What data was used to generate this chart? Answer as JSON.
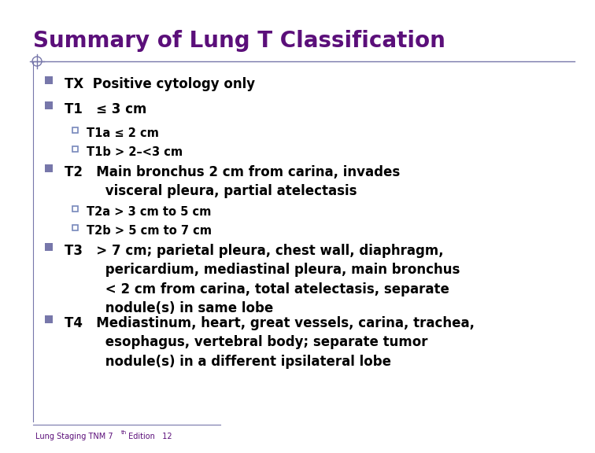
{
  "title": "Summary of Lung T Classification",
  "title_color": "#5B0F7A",
  "title_fontsize": 20,
  "background_color": "#FFFFFF",
  "bullet_color": "#7777AA",
  "sub_bullet_color": "#7788BB",
  "text_color": "#000000",
  "footer_text": "Lung Staging TNM 7",
  "footer_superscript": "th",
  "footer_suffix": " Edition   12",
  "footer_color": "#5B0F7A",
  "lines": [
    {
      "level": 1,
      "nlines": 1,
      "text": "TX  Positive cytology only"
    },
    {
      "level": 1,
      "nlines": 1,
      "text": "T1   ≤ 3 cm"
    },
    {
      "level": 2,
      "nlines": 1,
      "text": "T1a ≤ 2 cm"
    },
    {
      "level": 2,
      "nlines": 1,
      "text": "T1b > 2–<3 cm"
    },
    {
      "level": 1,
      "nlines": 2,
      "text": "T2   Main bronchus 2 cm from carina, invades\n         visceral pleura, partial atelectasis"
    },
    {
      "level": 2,
      "nlines": 1,
      "text": "T2a > 3 cm to 5 cm"
    },
    {
      "level": 2,
      "nlines": 1,
      "text": "T2b > 5 cm to 7 cm"
    },
    {
      "level": 1,
      "nlines": 4,
      "text": "T3   > 7 cm; parietal pleura, chest wall, diaphragm,\n         pericardium, mediastinal pleura, main bronchus\n         < 2 cm from carina, total atelectasis, separate\n         nodule(s) in same lobe"
    },
    {
      "level": 1,
      "nlines": 3,
      "text": "T4   Mediastinum, heart, great vessels, carina, trachea,\n         esophagus, vertebral body; separate tumor\n         nodule(s) in a different ipsilateral lobe"
    }
  ]
}
